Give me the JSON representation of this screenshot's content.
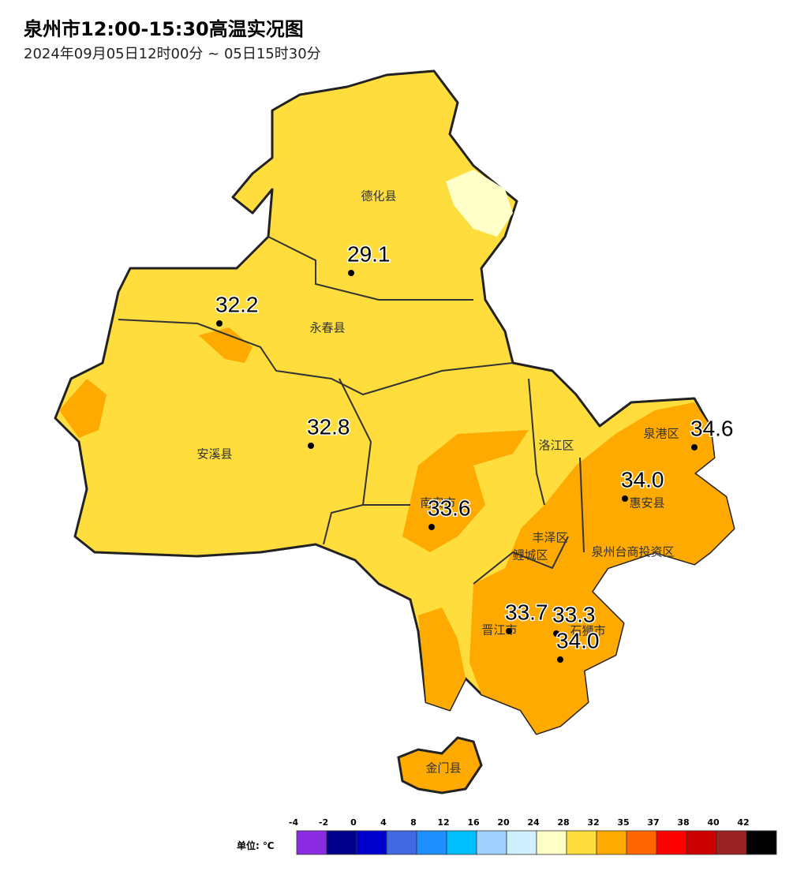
{
  "title": "泉州市12:00-15:30高温实况图",
  "subtitle": "2024年09月05日12时00分 ~ 05日15时30分",
  "districts": [
    "德化县",
    "永春县",
    "安溪县",
    "南安市",
    "洛江区",
    "泉港区",
    "惠安县",
    "丰泽区",
    "鲤城区",
    "泉州台商投资区",
    "晋江市",
    "石狮市",
    "金门县"
  ],
  "stations": {
    "values": [
      29.1,
      32.2,
      32.8,
      33.6,
      33.7,
      33.3,
      34.6,
      34.0,
      34.0
    ],
    "value_labels": [
      "29.1",
      "32.2",
      "32.8",
      "33.6",
      "33.7",
      "33.3",
      "34.6",
      "34.0",
      "34.0"
    ]
  },
  "legend": {
    "unit": "单位: ℃",
    "ticks": [
      -4,
      -2,
      0,
      4,
      8,
      12,
      16,
      20,
      24,
      28,
      32,
      35,
      37,
      38,
      40,
      42
    ],
    "colors": [
      "#8a2be2",
      "#00008b",
      "#0000cd",
      "#4169e1",
      "#1e90ff",
      "#00bfff",
      "#a0d0ff",
      "#d0f0ff",
      "#ffffc8",
      "#ffdd3c",
      "#ffaa00",
      "#ff6600",
      "#ff0000",
      "#cc0000",
      "#992222",
      "#000000"
    ]
  }
}
